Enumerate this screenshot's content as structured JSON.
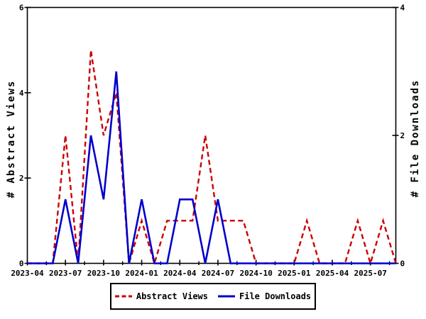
{
  "chart_data": {
    "type": "line",
    "title": "",
    "x": [
      "2023-04",
      "2023-05",
      "2023-06",
      "2023-07",
      "2023-08",
      "2023-09",
      "2023-10",
      "2023-11",
      "2023-12",
      "2024-01",
      "2024-02",
      "2024-03",
      "2024-04",
      "2024-05",
      "2024-06",
      "2024-07",
      "2024-08",
      "2024-09",
      "2024-10",
      "2024-11",
      "2024-12",
      "2025-01",
      "2025-02",
      "2025-03",
      "2025-04",
      "2025-05",
      "2025-06",
      "2025-07",
      "2025-08",
      "2025-09"
    ],
    "x_tick_labels": [
      "2023-04",
      "2023-07",
      "2023-10",
      "2024-01",
      "2024-04",
      "2024-07",
      "2024-10",
      "2025-01",
      "2025-04",
      "2025-07"
    ],
    "left_axis": {
      "label": "# Abstract Views",
      "range": [
        0,
        6
      ],
      "ticks": [
        0,
        2,
        4,
        6
      ]
    },
    "right_axis": {
      "label": "# File Downloads",
      "range": [
        0,
        4
      ],
      "ticks": [
        0,
        2,
        4
      ]
    },
    "series": [
      {
        "name": "Abstract Views",
        "axis": "left",
        "color": "#cc0000",
        "style": "dashed",
        "values": [
          0,
          0,
          0,
          3,
          0,
          5,
          3,
          4,
          0,
          1,
          0,
          1,
          1,
          1,
          3,
          1,
          1,
          1,
          0,
          0,
          0,
          0,
          1,
          0,
          0,
          0,
          1,
          0,
          1,
          0
        ]
      },
      {
        "name": "File Downloads",
        "axis": "right",
        "color": "#0000cc",
        "style": "solid",
        "values": [
          0,
          0,
          0,
          1,
          0,
          2,
          1,
          3,
          0,
          1,
          0,
          0,
          1,
          1,
          0,
          1,
          0,
          0,
          0,
          0,
          0,
          0,
          0,
          0,
          0,
          0,
          0,
          0,
          0,
          0
        ]
      }
    ],
    "legend": {
      "position": "bottom-center",
      "entries": [
        "Abstract Views",
        "File Downloads"
      ]
    },
    "grid": false,
    "background": "#ffffff",
    "border_color": "#000000"
  }
}
